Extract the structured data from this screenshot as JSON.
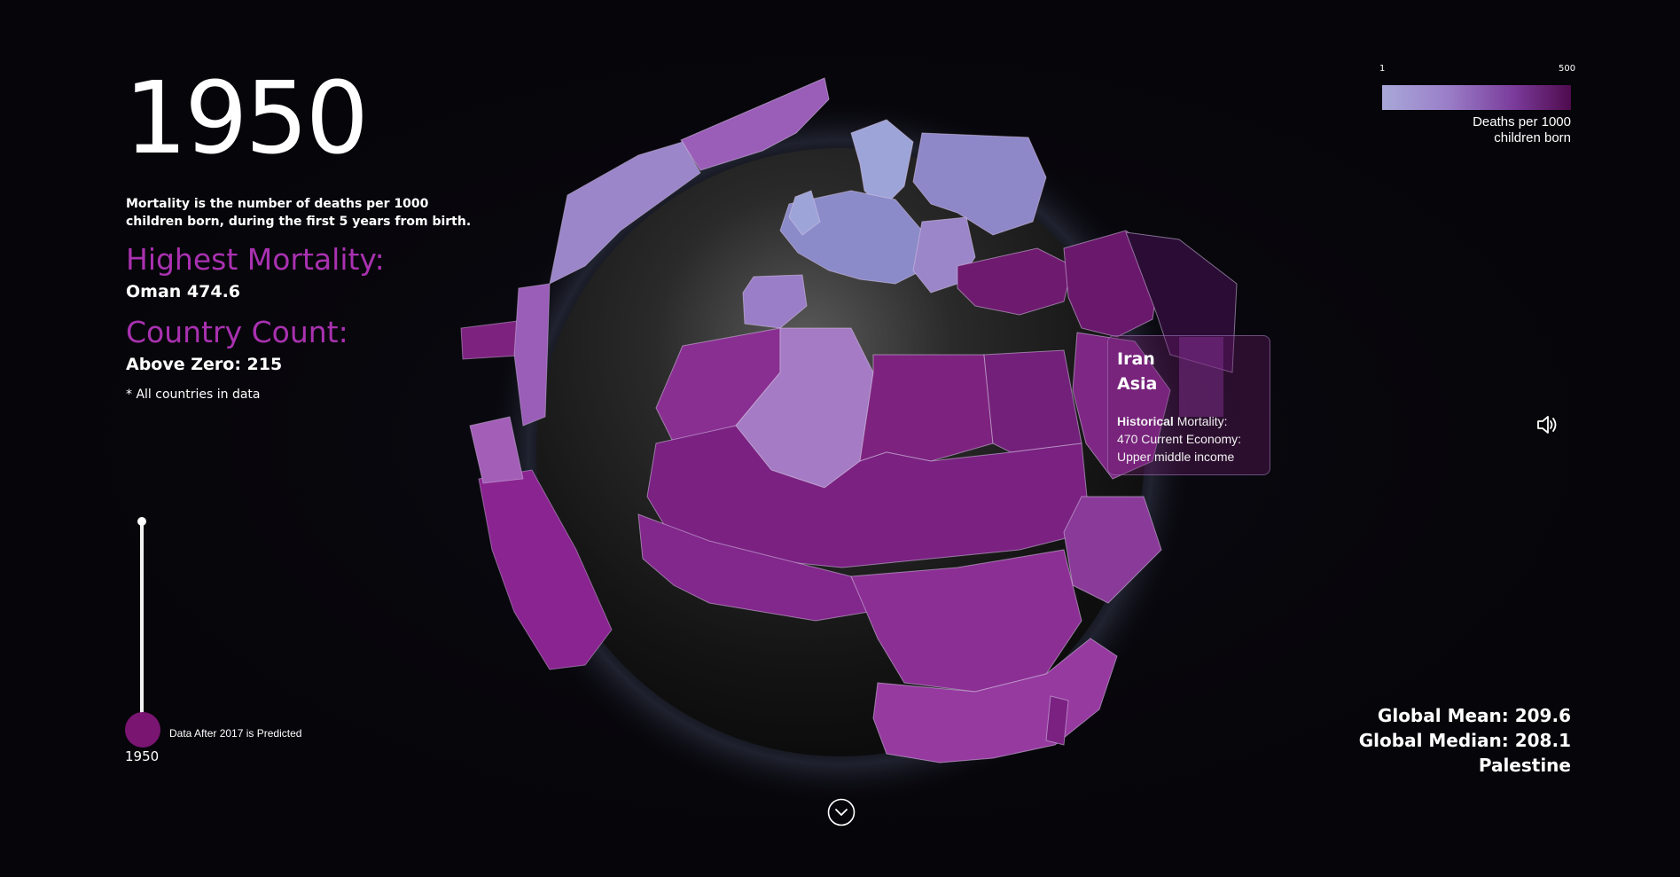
{
  "year_display": "1950",
  "description": "Mortality is the number of deaths per 1000 children born, during the first 5 years from birth.",
  "highest_mortality": {
    "heading": "Highest Mortality:",
    "value": "Oman 474.6"
  },
  "country_count": {
    "heading": "Country Count:",
    "value": "Above Zero: 215"
  },
  "footnote": "* All countries in data",
  "timeline": {
    "year_label": "1950",
    "note": "Data After 2017 is Predicted"
  },
  "legend": {
    "min": "1",
    "max": "500",
    "label_line1": "Deaths per 1000",
    "label_line2": "children born",
    "colors": [
      "#a8a8d8",
      "#9a7ec8",
      "#7a3b9a",
      "#4f0b4e"
    ]
  },
  "tooltip": {
    "country": "Iran",
    "region": "Asia",
    "label_bold": "Historical",
    "label_rest": "Mortality:",
    "line2": "470 Current Economy:",
    "line3": "Upper middle income"
  },
  "bottom_stats": {
    "mean": "Global Mean: 209.6",
    "median": "Global Median: 208.1",
    "hovered": "Palestine"
  },
  "icons": {
    "sound": "speaker-icon",
    "scroll": "chevron-down-icon"
  }
}
